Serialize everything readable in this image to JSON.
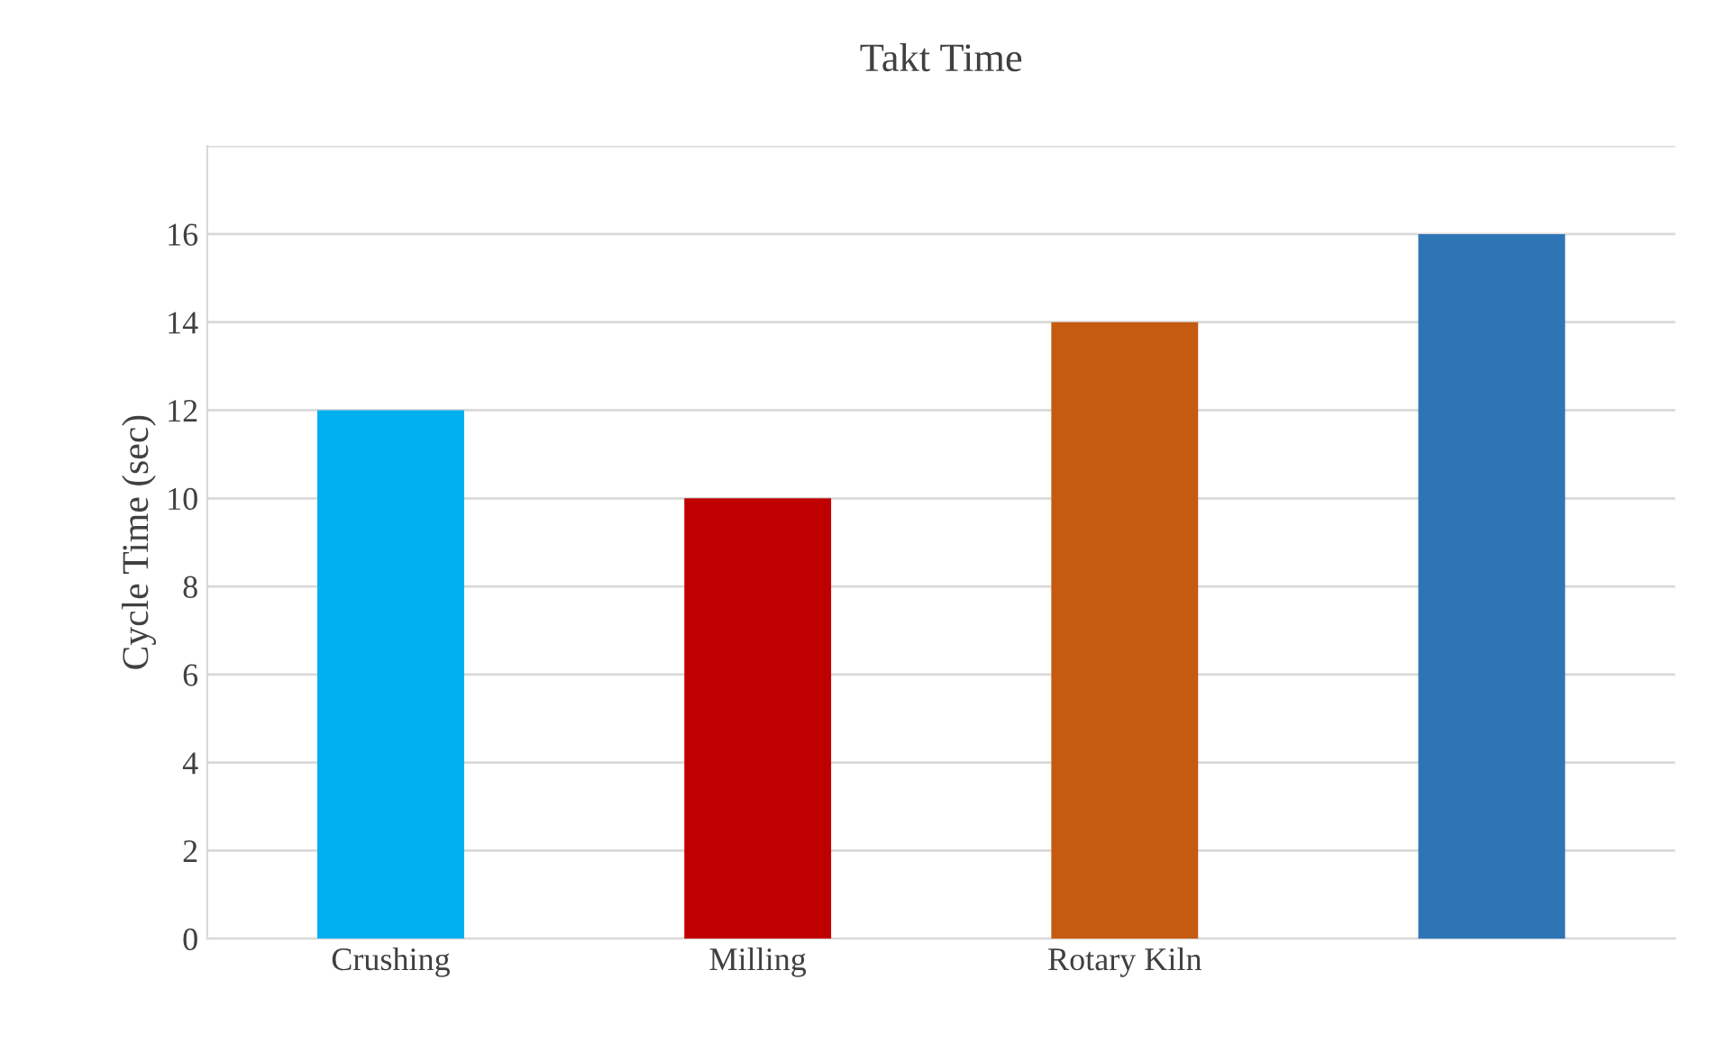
{
  "chart_data": {
    "type": "bar",
    "title": "Takt Time",
    "ylabel": "Cycle Time (sec)",
    "categories": [
      "Crushing",
      "Milling",
      "Rotary Kiln",
      null
    ],
    "values": [
      12,
      10,
      14,
      16
    ],
    "colors": [
      "#00b0f0",
      "#c00000",
      "#c55a11",
      "#2e75b6"
    ],
    "ylim": [
      0,
      18
    ],
    "yticks": [
      0,
      2,
      4,
      6,
      8,
      10,
      12,
      14,
      16,
      {
        "value": 18,
        "label": null
      }
    ],
    "grid": "y",
    "legend": false
  }
}
